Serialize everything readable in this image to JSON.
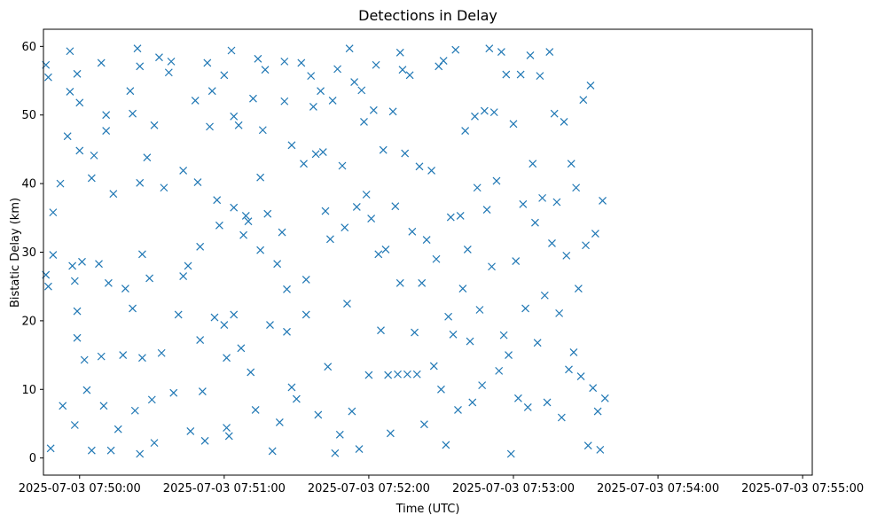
{
  "chart_data": {
    "type": "scatter",
    "title": "Detections in Delay",
    "xlabel": "Time (UTC)",
    "ylabel": "Bistatic Delay (km)",
    "marker": "x",
    "color": "#1f77b4",
    "grid": false,
    "x_ticks": [
      "2025-07-03 07:50:00",
      "2025-07-03 07:51:00",
      "2025-07-03 07:52:00",
      "2025-07-03 07:53:00",
      "2025-07-03 07:54:00",
      "2025-07-03 07:55:00"
    ],
    "y_ticks": [
      0,
      10,
      20,
      30,
      40,
      50,
      60
    ],
    "xlim": [
      "2025-07-03 07:49:45",
      "2025-07-03 07:55:04"
    ],
    "ylim": [
      -2.5,
      62.5
    ],
    "series": [
      {
        "points": [
          [
            "2025-07-03 07:49:46",
            57.3
          ],
          [
            "2025-07-03 07:49:47",
            55.5
          ],
          [
            "2025-07-03 07:49:46",
            26.7
          ],
          [
            "2025-07-03 07:49:47",
            25.0
          ],
          [
            "2025-07-03 07:49:48",
            1.4
          ],
          [
            "2025-07-03 07:49:49",
            35.8
          ],
          [
            "2025-07-03 07:49:49",
            29.6
          ],
          [
            "2025-07-03 07:49:52",
            40.0
          ],
          [
            "2025-07-03 07:49:53",
            7.6
          ],
          [
            "2025-07-03 07:49:56",
            59.3
          ],
          [
            "2025-07-03 07:49:56",
            53.4
          ],
          [
            "2025-07-03 07:49:55",
            46.9
          ],
          [
            "2025-07-03 07:49:57",
            28.0
          ],
          [
            "2025-07-03 07:49:58",
            25.8
          ],
          [
            "2025-07-03 07:49:59",
            56.0
          ],
          [
            "2025-07-03 07:50:00",
            51.8
          ],
          [
            "2025-07-03 07:50:00",
            44.8
          ],
          [
            "2025-07-03 07:49:59",
            21.4
          ],
          [
            "2025-07-03 07:49:59",
            17.5
          ],
          [
            "2025-07-03 07:49:58",
            4.8
          ],
          [
            "2025-07-03 07:50:01",
            28.6
          ],
          [
            "2025-07-03 07:50:02",
            14.3
          ],
          [
            "2025-07-03 07:50:03",
            9.9
          ],
          [
            "2025-07-03 07:50:05",
            40.8
          ],
          [
            "2025-07-03 07:50:06",
            44.1
          ],
          [
            "2025-07-03 07:50:05",
            1.1
          ],
          [
            "2025-07-03 07:50:08",
            28.3
          ],
          [
            "2025-07-03 07:50:09",
            57.6
          ],
          [
            "2025-07-03 07:50:09",
            14.8
          ],
          [
            "2025-07-03 07:50:10",
            7.6
          ],
          [
            "2025-07-03 07:50:11",
            50.0
          ],
          [
            "2025-07-03 07:50:11",
            47.7
          ],
          [
            "2025-07-03 07:50:12",
            25.5
          ],
          [
            "2025-07-03 07:50:13",
            1.1
          ],
          [
            "2025-07-03 07:50:14",
            38.5
          ],
          [
            "2025-07-03 07:50:16",
            4.2
          ],
          [
            "2025-07-03 07:50:18",
            15.0
          ],
          [
            "2025-07-03 07:50:19",
            24.7
          ],
          [
            "2025-07-03 07:50:21",
            53.5
          ],
          [
            "2025-07-03 07:50:22",
            50.2
          ],
          [
            "2025-07-03 07:50:22",
            21.8
          ],
          [
            "2025-07-03 07:50:23",
            6.9
          ],
          [
            "2025-07-03 07:50:24",
            59.7
          ],
          [
            "2025-07-03 07:50:25",
            57.1
          ],
          [
            "2025-07-03 07:50:25",
            40.1
          ],
          [
            "2025-07-03 07:50:26",
            29.7
          ],
          [
            "2025-07-03 07:50:26",
            14.6
          ],
          [
            "2025-07-03 07:50:25",
            0.6
          ],
          [
            "2025-07-03 07:50:28",
            43.8
          ],
          [
            "2025-07-03 07:50:29",
            26.2
          ],
          [
            "2025-07-03 07:50:30",
            8.5
          ],
          [
            "2025-07-03 07:50:31",
            48.5
          ],
          [
            "2025-07-03 07:50:31",
            2.2
          ],
          [
            "2025-07-03 07:50:33",
            58.4
          ],
          [
            "2025-07-03 07:50:34",
            15.3
          ],
          [
            "2025-07-03 07:50:35",
            39.4
          ],
          [
            "2025-07-03 07:50:37",
            56.2
          ],
          [
            "2025-07-03 07:50:38",
            57.8
          ],
          [
            "2025-07-03 07:50:39",
            9.5
          ],
          [
            "2025-07-03 07:50:41",
            20.9
          ],
          [
            "2025-07-03 07:50:43",
            41.9
          ],
          [
            "2025-07-03 07:50:43",
            26.5
          ],
          [
            "2025-07-03 07:50:45",
            28.0
          ],
          [
            "2025-07-03 07:50:46",
            3.9
          ],
          [
            "2025-07-03 07:50:48",
            52.1
          ],
          [
            "2025-07-03 07:50:49",
            40.2
          ],
          [
            "2025-07-03 07:50:50",
            30.8
          ],
          [
            "2025-07-03 07:50:50",
            17.2
          ],
          [
            "2025-07-03 07:50:51",
            9.7
          ],
          [
            "2025-07-03 07:50:52",
            2.5
          ],
          [
            "2025-07-03 07:50:53",
            57.6
          ],
          [
            "2025-07-03 07:50:54",
            48.3
          ],
          [
            "2025-07-03 07:50:55",
            53.5
          ],
          [
            "2025-07-03 07:50:56",
            20.5
          ],
          [
            "2025-07-03 07:50:57",
            37.6
          ],
          [
            "2025-07-03 07:50:58",
            33.9
          ],
          [
            "2025-07-03 07:51:00",
            55.8
          ],
          [
            "2025-07-03 07:51:00",
            19.4
          ],
          [
            "2025-07-03 07:51:01",
            14.6
          ],
          [
            "2025-07-03 07:51:01",
            4.4
          ],
          [
            "2025-07-03 07:51:02",
            3.2
          ],
          [
            "2025-07-03 07:51:03",
            59.4
          ],
          [
            "2025-07-03 07:51:04",
            49.8
          ],
          [
            "2025-07-03 07:51:04",
            36.5
          ],
          [
            "2025-07-03 07:51:04",
            20.9
          ],
          [
            "2025-07-03 07:51:06",
            48.5
          ],
          [
            "2025-07-03 07:51:07",
            16.0
          ],
          [
            "2025-07-03 07:51:08",
            32.5
          ],
          [
            "2025-07-03 07:51:09",
            35.3
          ],
          [
            "2025-07-03 07:51:10",
            34.5
          ],
          [
            "2025-07-03 07:51:11",
            12.5
          ],
          [
            "2025-07-03 07:51:12",
            52.4
          ],
          [
            "2025-07-03 07:51:13",
            7.0
          ],
          [
            "2025-07-03 07:51:14",
            58.2
          ],
          [
            "2025-07-03 07:51:15",
            40.9
          ],
          [
            "2025-07-03 07:51:15",
            30.3
          ],
          [
            "2025-07-03 07:51:16",
            47.8
          ],
          [
            "2025-07-03 07:51:17",
            56.6
          ],
          [
            "2025-07-03 07:51:18",
            35.6
          ],
          [
            "2025-07-03 07:51:19",
            19.4
          ],
          [
            "2025-07-03 07:51:20",
            1.0
          ],
          [
            "2025-07-03 07:51:22",
            28.3
          ],
          [
            "2025-07-03 07:51:23",
            5.2
          ],
          [
            "2025-07-03 07:51:24",
            32.9
          ],
          [
            "2025-07-03 07:51:25",
            57.8
          ],
          [
            "2025-07-03 07:51:25",
            52.0
          ],
          [
            "2025-07-03 07:51:26",
            24.6
          ],
          [
            "2025-07-03 07:51:26",
            18.4
          ],
          [
            "2025-07-03 07:51:28",
            45.6
          ],
          [
            "2025-07-03 07:51:28",
            10.3
          ],
          [
            "2025-07-03 07:51:30",
            8.6
          ],
          [
            "2025-07-03 07:51:32",
            57.6
          ],
          [
            "2025-07-03 07:51:33",
            42.9
          ],
          [
            "2025-07-03 07:51:34",
            26.0
          ],
          [
            "2025-07-03 07:51:34",
            20.9
          ],
          [
            "2025-07-03 07:51:36",
            55.7
          ],
          [
            "2025-07-03 07:51:37",
            51.2
          ],
          [
            "2025-07-03 07:51:38",
            44.3
          ],
          [
            "2025-07-03 07:51:39",
            6.3
          ],
          [
            "2025-07-03 07:51:40",
            53.5
          ],
          [
            "2025-07-03 07:51:41",
            44.6
          ],
          [
            "2025-07-03 07:51:42",
            36.0
          ],
          [
            "2025-07-03 07:51:43",
            13.3
          ],
          [
            "2025-07-03 07:51:44",
            31.9
          ],
          [
            "2025-07-03 07:51:45",
            52.1
          ],
          [
            "2025-07-03 07:51:46",
            0.7
          ],
          [
            "2025-07-03 07:51:47",
            56.7
          ],
          [
            "2025-07-03 07:51:48",
            3.4
          ],
          [
            "2025-07-03 07:51:49",
            42.6
          ],
          [
            "2025-07-03 07:51:50",
            33.6
          ],
          [
            "2025-07-03 07:51:51",
            22.5
          ],
          [
            "2025-07-03 07:51:52",
            59.7
          ],
          [
            "2025-07-03 07:51:53",
            6.8
          ],
          [
            "2025-07-03 07:51:54",
            54.8
          ],
          [
            "2025-07-03 07:51:55",
            36.6
          ],
          [
            "2025-07-03 07:51:56",
            1.3
          ],
          [
            "2025-07-03 07:51:57",
            53.6
          ],
          [
            "2025-07-03 07:51:58",
            49.0
          ],
          [
            "2025-07-03 07:51:59",
            38.4
          ],
          [
            "2025-07-03 07:52:00",
            12.1
          ],
          [
            "2025-07-03 07:52:01",
            34.9
          ],
          [
            "2025-07-03 07:52:02",
            50.7
          ],
          [
            "2025-07-03 07:52:03",
            57.3
          ],
          [
            "2025-07-03 07:52:04",
            29.7
          ],
          [
            "2025-07-03 07:52:05",
            18.6
          ],
          [
            "2025-07-03 07:52:06",
            44.9
          ],
          [
            "2025-07-03 07:52:07",
            30.4
          ],
          [
            "2025-07-03 07:52:08",
            12.1
          ],
          [
            "2025-07-03 07:52:09",
            3.6
          ],
          [
            "2025-07-03 07:52:10",
            50.5
          ],
          [
            "2025-07-03 07:52:11",
            36.7
          ],
          [
            "2025-07-03 07:52:12",
            12.2
          ],
          [
            "2025-07-03 07:52:13",
            59.1
          ],
          [
            "2025-07-03 07:52:13",
            25.5
          ],
          [
            "2025-07-03 07:52:14",
            56.6
          ],
          [
            "2025-07-03 07:52:15",
            44.4
          ],
          [
            "2025-07-03 07:52:16",
            12.2
          ],
          [
            "2025-07-03 07:52:17",
            55.8
          ],
          [
            "2025-07-03 07:52:18",
            33.0
          ],
          [
            "2025-07-03 07:52:19",
            18.3
          ],
          [
            "2025-07-03 07:52:20",
            12.2
          ],
          [
            "2025-07-03 07:52:21",
            42.5
          ],
          [
            "2025-07-03 07:52:22",
            25.5
          ],
          [
            "2025-07-03 07:52:23",
            4.9
          ],
          [
            "2025-07-03 07:52:24",
            31.8
          ],
          [
            "2025-07-03 07:52:26",
            41.9
          ],
          [
            "2025-07-03 07:52:27",
            13.4
          ],
          [
            "2025-07-03 07:52:28",
            29.0
          ],
          [
            "2025-07-03 07:52:29",
            57.1
          ],
          [
            "2025-07-03 07:52:30",
            10.0
          ],
          [
            "2025-07-03 07:52:31",
            57.9
          ],
          [
            "2025-07-03 07:52:32",
            1.9
          ],
          [
            "2025-07-03 07:52:33",
            20.6
          ],
          [
            "2025-07-03 07:52:34",
            35.1
          ],
          [
            "2025-07-03 07:52:35",
            18.0
          ],
          [
            "2025-07-03 07:52:36",
            59.5
          ],
          [
            "2025-07-03 07:52:37",
            7.0
          ],
          [
            "2025-07-03 07:52:38",
            35.3
          ],
          [
            "2025-07-03 07:52:39",
            24.7
          ],
          [
            "2025-07-03 07:52:40",
            47.7
          ],
          [
            "2025-07-03 07:52:41",
            30.4
          ],
          [
            "2025-07-03 07:52:42",
            17.0
          ],
          [
            "2025-07-03 07:52:43",
            8.1
          ],
          [
            "2025-07-03 07:52:44",
            49.8
          ],
          [
            "2025-07-03 07:52:45",
            39.4
          ],
          [
            "2025-07-03 07:52:46",
            21.6
          ],
          [
            "2025-07-03 07:52:47",
            10.6
          ],
          [
            "2025-07-03 07:52:48",
            50.6
          ],
          [
            "2025-07-03 07:52:49",
            36.2
          ],
          [
            "2025-07-03 07:52:50",
            59.7
          ],
          [
            "2025-07-03 07:52:51",
            27.9
          ],
          [
            "2025-07-03 07:52:52",
            50.4
          ],
          [
            "2025-07-03 07:52:53",
            40.4
          ],
          [
            "2025-07-03 07:52:54",
            12.7
          ],
          [
            "2025-07-03 07:52:55",
            59.2
          ],
          [
            "2025-07-03 07:52:56",
            17.9
          ],
          [
            "2025-07-03 07:52:57",
            55.9
          ],
          [
            "2025-07-03 07:52:58",
            15.0
          ],
          [
            "2025-07-03 07:52:59",
            0.6
          ],
          [
            "2025-07-03 07:53:00",
            48.7
          ],
          [
            "2025-07-03 07:53:01",
            28.7
          ],
          [
            "2025-07-03 07:53:02",
            8.7
          ],
          [
            "2025-07-03 07:53:03",
            55.9
          ],
          [
            "2025-07-03 07:53:04",
            37.0
          ],
          [
            "2025-07-03 07:53:05",
            21.8
          ],
          [
            "2025-07-03 07:53:06",
            7.4
          ],
          [
            "2025-07-03 07:53:07",
            58.7
          ],
          [
            "2025-07-03 07:53:08",
            42.9
          ],
          [
            "2025-07-03 07:53:09",
            34.3
          ],
          [
            "2025-07-03 07:53:10",
            16.8
          ],
          [
            "2025-07-03 07:53:11",
            55.7
          ],
          [
            "2025-07-03 07:53:12",
            37.9
          ],
          [
            "2025-07-03 07:53:13",
            23.7
          ],
          [
            "2025-07-03 07:53:14",
            8.1
          ],
          [
            "2025-07-03 07:53:15",
            59.2
          ],
          [
            "2025-07-03 07:53:16",
            31.3
          ],
          [
            "2025-07-03 07:53:17",
            50.2
          ],
          [
            "2025-07-03 07:53:18",
            37.3
          ],
          [
            "2025-07-03 07:53:19",
            21.1
          ],
          [
            "2025-07-03 07:53:20",
            5.9
          ],
          [
            "2025-07-03 07:53:21",
            49.0
          ],
          [
            "2025-07-03 07:53:22",
            29.5
          ],
          [
            "2025-07-03 07:53:23",
            12.9
          ],
          [
            "2025-07-03 07:53:24",
            42.9
          ],
          [
            "2025-07-03 07:53:25",
            15.4
          ],
          [
            "2025-07-03 07:53:26",
            39.4
          ],
          [
            "2025-07-03 07:53:27",
            24.7
          ],
          [
            "2025-07-03 07:53:28",
            11.9
          ],
          [
            "2025-07-03 07:53:29",
            52.2
          ],
          [
            "2025-07-03 07:53:30",
            31.0
          ],
          [
            "2025-07-03 07:53:31",
            1.8
          ],
          [
            "2025-07-03 07:53:32",
            54.3
          ],
          [
            "2025-07-03 07:53:33",
            10.2
          ],
          [
            "2025-07-03 07:53:34",
            32.7
          ],
          [
            "2025-07-03 07:53:35",
            6.8
          ],
          [
            "2025-07-03 07:53:36",
            1.2
          ],
          [
            "2025-07-03 07:53:37",
            37.5
          ],
          [
            "2025-07-03 07:53:38",
            8.7
          ]
        ]
      }
    ]
  }
}
